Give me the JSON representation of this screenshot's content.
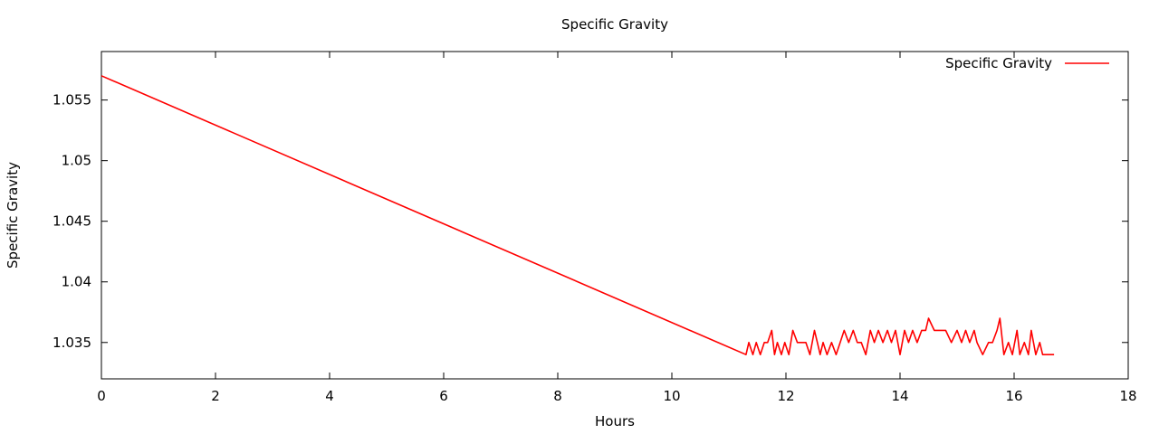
{
  "chart_data": {
    "type": "line",
    "title": "Specific Gravity",
    "xlabel": "Hours",
    "ylabel": "Specific Gravity",
    "xlim": [
      0,
      18
    ],
    "ylim": [
      1.032,
      1.059
    ],
    "xticks": [
      0,
      2,
      4,
      6,
      8,
      10,
      12,
      14,
      16,
      18
    ],
    "yticks": [
      1.035,
      1.04,
      1.045,
      1.05,
      1.055
    ],
    "ytick_labels": [
      "1.035",
      "1.04",
      "1.045",
      "1.05",
      "1.055"
    ],
    "grid": false,
    "legend": "top-right",
    "color": "#ff0000",
    "series": [
      {
        "name": "Specific Gravity",
        "x": [
          0,
          11.3,
          11.35,
          11.42,
          11.48,
          11.55,
          11.62,
          11.68,
          11.75,
          11.8,
          11.85,
          11.92,
          11.98,
          12.05,
          12.12,
          12.2,
          12.28,
          12.35,
          12.42,
          12.5,
          12.55,
          12.6,
          12.65,
          12.72,
          12.8,
          12.88,
          12.95,
          13.02,
          13.1,
          13.18,
          13.25,
          13.32,
          13.4,
          13.48,
          13.55,
          13.62,
          13.7,
          13.78,
          13.85,
          13.92,
          14.0,
          14.08,
          14.15,
          14.22,
          14.3,
          14.38,
          14.45,
          14.5,
          14.6,
          14.7,
          14.8,
          14.9,
          15.0,
          15.08,
          15.15,
          15.22,
          15.3,
          15.35,
          15.45,
          15.55,
          15.62,
          15.7,
          15.75,
          15.82,
          15.9,
          15.97,
          16.05,
          16.1,
          16.18,
          16.25,
          16.3,
          16.38,
          16.45,
          16.5,
          16.6,
          16.7
        ],
        "values": [
          1.057,
          1.034,
          1.035,
          1.034,
          1.035,
          1.034,
          1.035,
          1.035,
          1.036,
          1.034,
          1.035,
          1.034,
          1.035,
          1.034,
          1.036,
          1.035,
          1.035,
          1.035,
          1.034,
          1.036,
          1.035,
          1.034,
          1.035,
          1.034,
          1.035,
          1.034,
          1.035,
          1.036,
          1.035,
          1.036,
          1.035,
          1.035,
          1.034,
          1.036,
          1.035,
          1.036,
          1.035,
          1.036,
          1.035,
          1.036,
          1.034,
          1.036,
          1.035,
          1.036,
          1.035,
          1.036,
          1.036,
          1.037,
          1.036,
          1.036,
          1.036,
          1.035,
          1.036,
          1.035,
          1.036,
          1.035,
          1.036,
          1.035,
          1.034,
          1.035,
          1.035,
          1.036,
          1.037,
          1.034,
          1.035,
          1.034,
          1.036,
          1.034,
          1.035,
          1.034,
          1.036,
          1.034,
          1.035,
          1.034,
          1.034,
          1.034
        ]
      }
    ]
  }
}
